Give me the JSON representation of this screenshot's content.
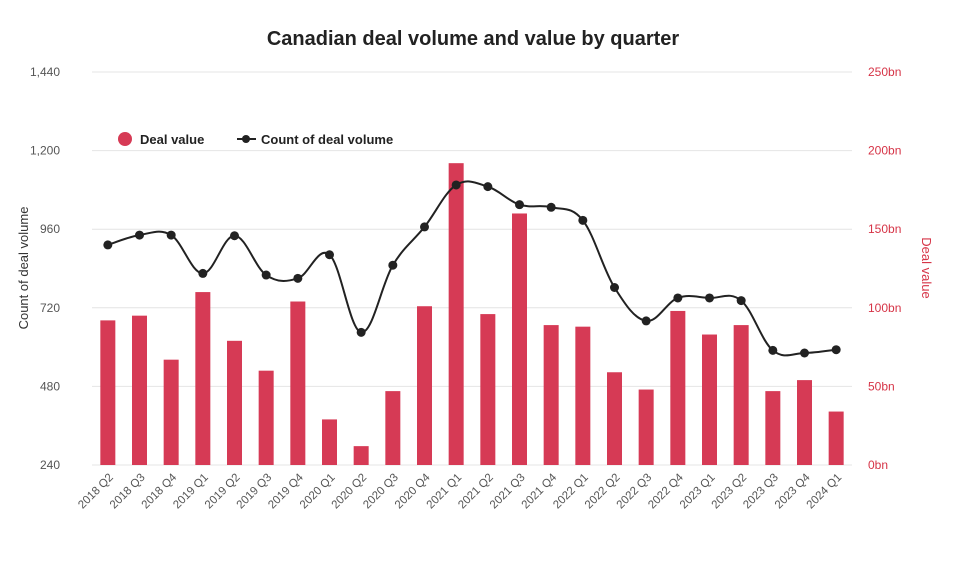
{
  "chart_data": {
    "type": "bar+line",
    "title": "Canadian deal volume and value by quarter",
    "categories": [
      "2018 Q2",
      "2018 Q3",
      "2018 Q4",
      "2019 Q1",
      "2019 Q2",
      "2019 Q3",
      "2019 Q4",
      "2020 Q1",
      "2020 Q2",
      "2020 Q3",
      "2020 Q4",
      "2021 Q1",
      "2021 Q2",
      "2021 Q3",
      "2021 Q4",
      "2022 Q1",
      "2022 Q2",
      "2022 Q3",
      "2022 Q4",
      "2023 Q1",
      "2023 Q2",
      "2023 Q3",
      "2023 Q4",
      "2024 Q1"
    ],
    "left_axis": {
      "label": "Count of deal volume",
      "ylim": [
        240,
        1440
      ],
      "ticks": [
        "240",
        "480",
        "720",
        "960",
        "1,200",
        "1,440"
      ],
      "tick_values": [
        240,
        480,
        720,
        960,
        1200,
        1440
      ]
    },
    "right_axis": {
      "label": "Deal value",
      "ylim": [
        0,
        250
      ],
      "ticks": [
        "0bn",
        "50bn",
        "100bn",
        "150bn",
        "200bn",
        "250bn"
      ],
      "tick_values": [
        0,
        50,
        100,
        150,
        200,
        250
      ]
    },
    "series": [
      {
        "name": "Deal value",
        "type": "bar",
        "axis": "right",
        "color": "#d63a55",
        "values": [
          92,
          95,
          67,
          110,
          79,
          60,
          104,
          29,
          12,
          47,
          101,
          192,
          96,
          160,
          89,
          88,
          59,
          48,
          98,
          83,
          89,
          47,
          54,
          34
        ]
      },
      {
        "name": "Count of deal volume",
        "type": "line",
        "axis": "left",
        "color": "#222222",
        "values": [
          912,
          942,
          942,
          825,
          940,
          820,
          810,
          882,
          645,
          850,
          967,
          1095,
          1090,
          1035,
          1027,
          987,
          782,
          680,
          750,
          750,
          742,
          590,
          582,
          592
        ]
      }
    ],
    "legend": {
      "position": "top-left",
      "items": [
        "Deal value",
        "Count of deal volume"
      ]
    },
    "grid": true
  }
}
